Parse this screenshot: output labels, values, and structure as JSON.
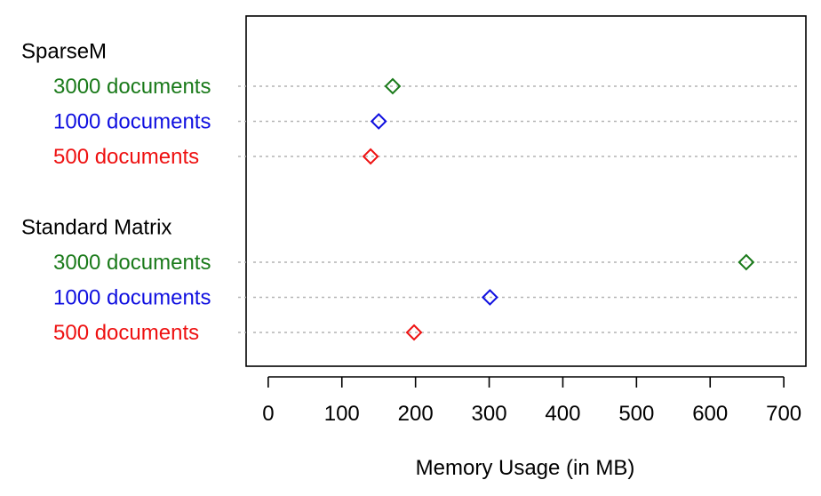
{
  "chart_data": {
    "type": "scatter",
    "xlabel": "Memory Usage (in MB)",
    "xlim": [
      -30,
      730
    ],
    "xticks": [
      0,
      100,
      200,
      300,
      400,
      500,
      600,
      700
    ],
    "grid": "horizontal dotted lines per row",
    "colors": {
      "3000 documents": "#1a7a1a",
      "1000 documents": "#1010e0",
      "500 documents": "#ee1111"
    },
    "groups": [
      {
        "label": "SparseM",
        "rows": [
          {
            "label": "3000 documents",
            "value": 169
          },
          {
            "label": "1000 documents",
            "value": 150
          },
          {
            "label": "500 documents",
            "value": 139
          }
        ]
      },
      {
        "label": "Standard Matrix",
        "rows": [
          {
            "label": "3000 documents",
            "value": 649
          },
          {
            "label": "1000 documents",
            "value": 301
          },
          {
            "label": "500 documents",
            "value": 198
          }
        ]
      }
    ]
  }
}
